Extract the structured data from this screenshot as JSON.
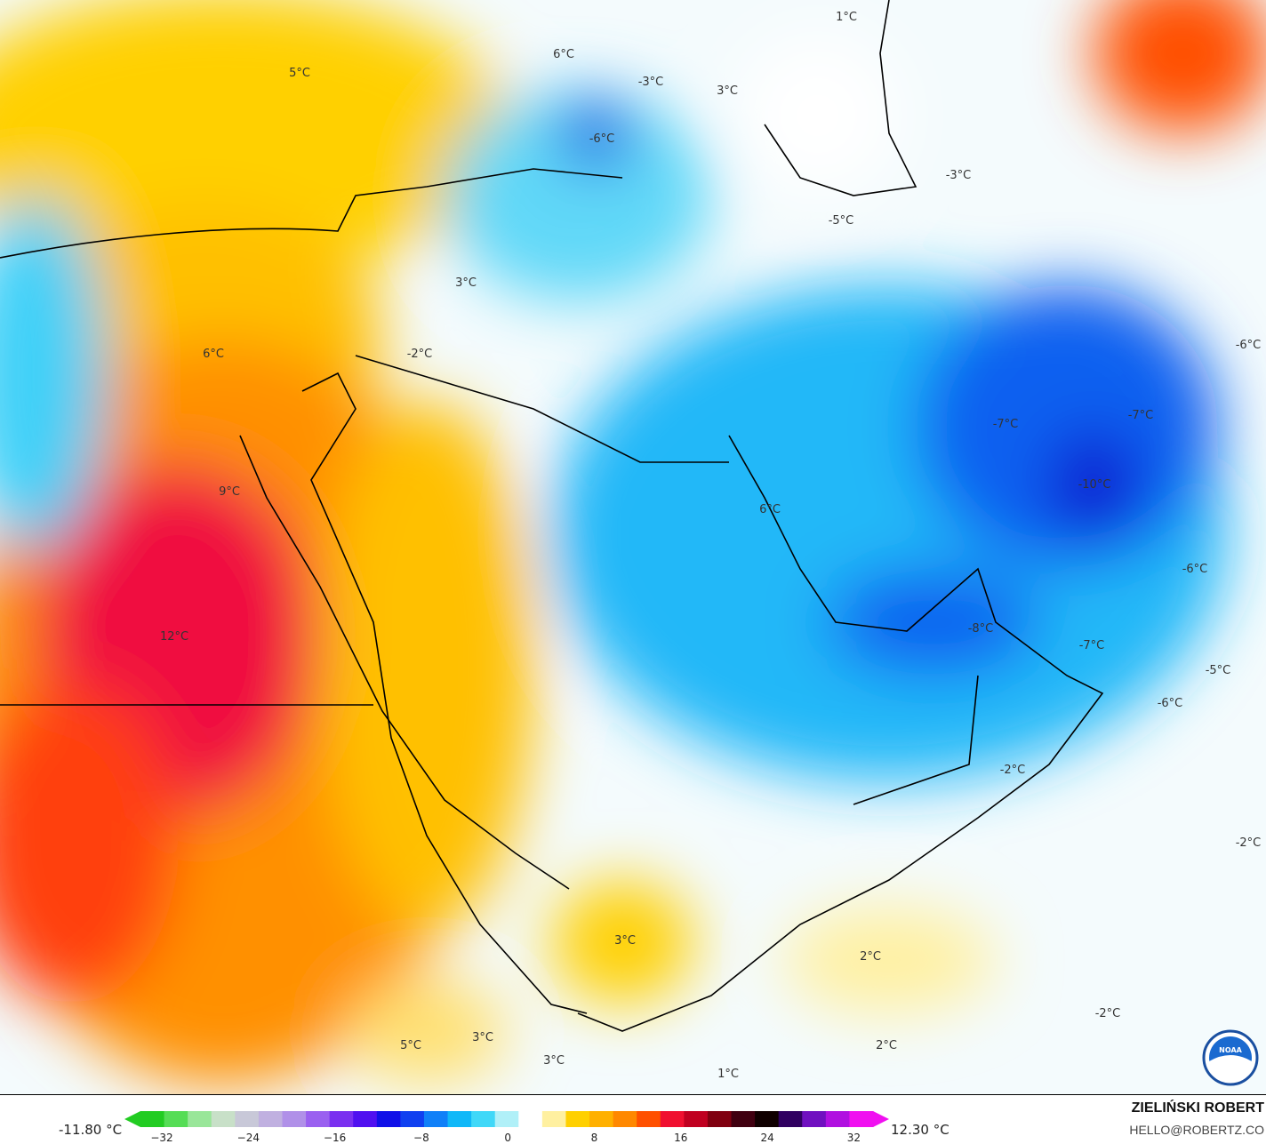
{
  "map": {
    "variable_unit": "°C",
    "labels": [
      "5°C",
      "6°C",
      "-3°C",
      "3°C",
      "1°C",
      "-6°C",
      "-3°C",
      "-5°C",
      "3°C",
      "-2°C",
      "6°C",
      "-6°C",
      "-7°C",
      "-7°C",
      "-10°C",
      "9°C",
      "6°C",
      "-6°C",
      "12°C",
      "-8°C",
      "-7°C",
      "-5°C",
      "-6°C",
      "-2°C",
      "-2°C",
      "3°C",
      "2°C",
      "-2°C",
      "5°C",
      "3°C",
      "2°C",
      "3°C",
      "1°C"
    ],
    "logo": "NOAA"
  },
  "legend": {
    "min_value": "-11.80 °C",
    "max_value": "12.30 °C",
    "ticks": [
      "−32",
      "−24",
      "−16",
      "−8",
      "0",
      "8",
      "16",
      "24",
      "32"
    ],
    "colors": [
      "#22cc22",
      "#55dd55",
      "#99e699",
      "#c8e0c8",
      "#c8c8d8",
      "#c0b0e0",
      "#b090e8",
      "#9a60f0",
      "#7a30f0",
      "#5010f0",
      "#1010e8",
      "#1040f0",
      "#1080f8",
      "#10b8f8",
      "#40d8f8",
      "#b0f0f8",
      "#ffffff",
      "#fff0a0",
      "#ffd000",
      "#ffb000",
      "#ff8800",
      "#ff5000",
      "#f01030",
      "#c00020",
      "#800010",
      "#400010",
      "#100000",
      "#300060",
      "#7010c0",
      "#b010e0",
      "#f010f0"
    ]
  },
  "credits": {
    "author": "ZIELIŃSKI ROBERT",
    "email": "HELLO@ROBERTZ.CO"
  }
}
